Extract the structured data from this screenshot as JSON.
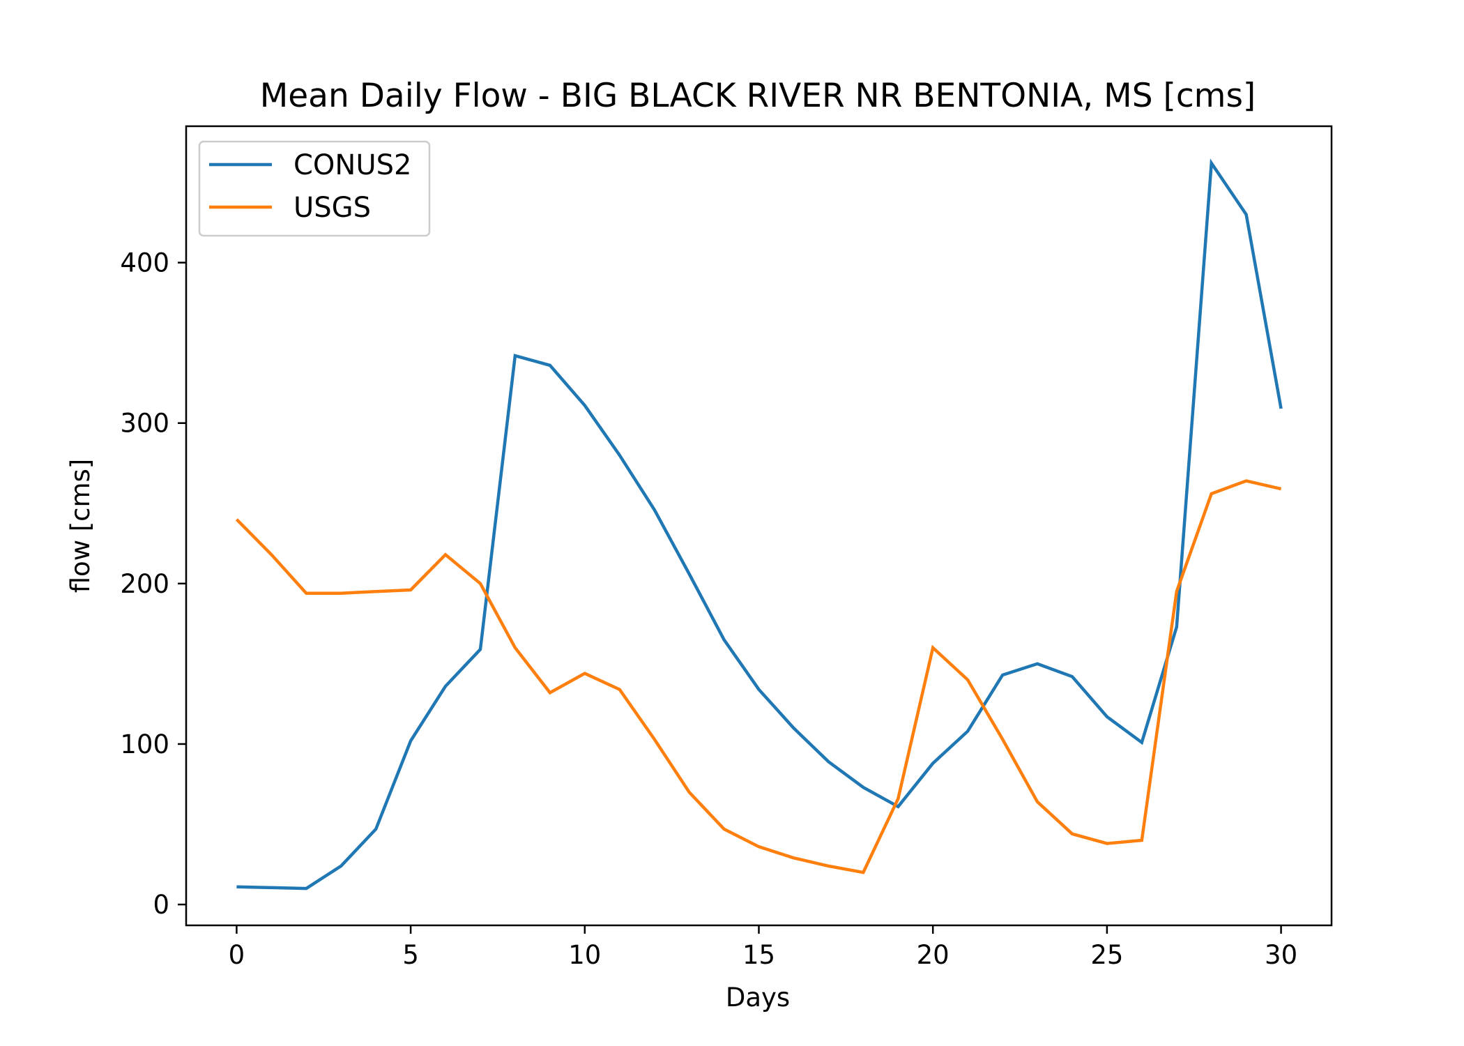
{
  "chart_data": {
    "type": "line",
    "title": "Mean Daily Flow - BIG BLACK RIVER NR BENTONIA, MS [cms]",
    "xlabel": "Days",
    "ylabel": "flow [cms]",
    "xlim": [
      -1.45,
      31.45
    ],
    "ylim": [
      -13,
      485
    ],
    "xticks": [
      0,
      5,
      10,
      15,
      20,
      25,
      30
    ],
    "yticks": [
      0,
      100,
      200,
      300,
      400
    ],
    "grid": false,
    "legend_position": "upper-left",
    "x": [
      0,
      1,
      2,
      3,
      4,
      5,
      6,
      7,
      8,
      9,
      10,
      11,
      12,
      13,
      14,
      15,
      16,
      17,
      18,
      19,
      20,
      21,
      22,
      23,
      24,
      25,
      26,
      27,
      28,
      29,
      30
    ],
    "series": [
      {
        "name": "CONUS2",
        "color": "#1f77b4",
        "values": [
          11,
          10.5,
          10,
          24,
          47,
          102,
          136,
          159,
          342,
          336,
          311,
          280,
          246,
          206,
          165,
          134,
          110,
          89,
          73,
          61,
          88,
          108,
          143,
          150,
          142,
          117,
          101,
          173,
          462,
          430,
          309
        ]
      },
      {
        "name": "USGS",
        "color": "#ff7f0e",
        "values": [
          240,
          218,
          194,
          194,
          195,
          196,
          218,
          200,
          160,
          132,
          144,
          134,
          103,
          70,
          47,
          36,
          29,
          24,
          20,
          66,
          160,
          140,
          103,
          64,
          44,
          38,
          40,
          195,
          256,
          264,
          259
        ]
      }
    ]
  }
}
